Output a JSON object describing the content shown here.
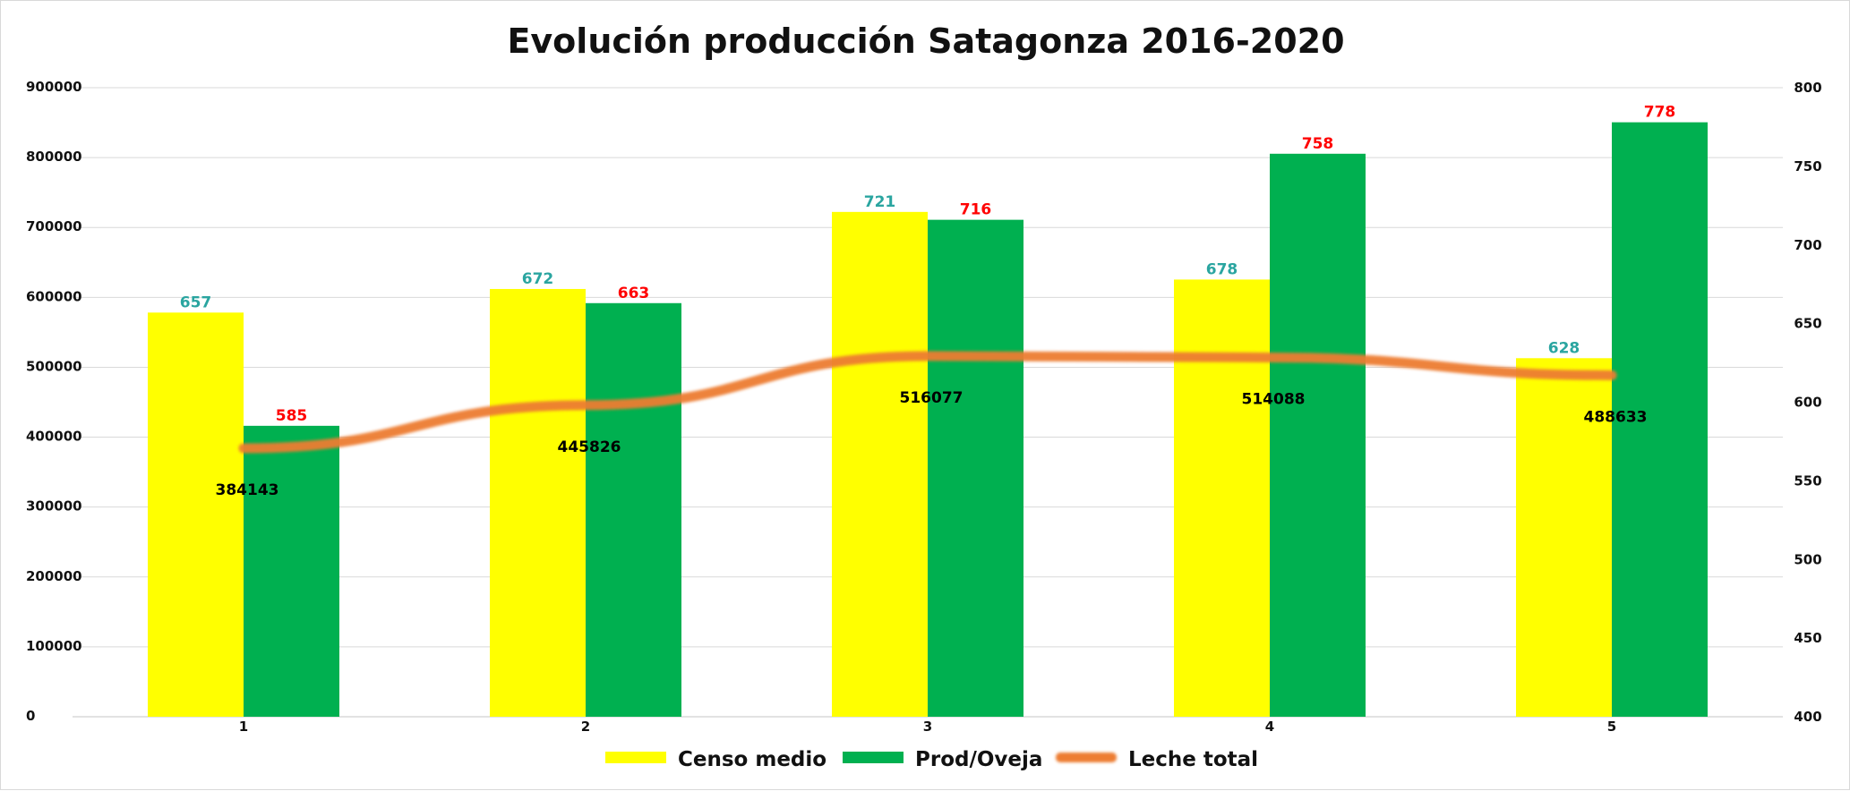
{
  "chart_data": {
    "type": "bar",
    "title": "Evolución producción Satagonza 2016-2020",
    "categories": [
      "1",
      "2",
      "3",
      "4",
      "5"
    ],
    "y_left": {
      "ylim": [
        0,
        900000
      ],
      "ticks": [
        "0",
        "100000",
        "200000",
        "300000",
        "400000",
        "500000",
        "600000",
        "700000",
        "800000",
        "900000"
      ]
    },
    "y_right": {
      "ylim": [
        400,
        800
      ],
      "ticks": [
        "400",
        "450",
        "500",
        "550",
        "600",
        "650",
        "700",
        "750",
        "800"
      ]
    },
    "series": [
      {
        "name": "Censo medio",
        "kind": "bar",
        "axis": "right",
        "color": "#FFFF00",
        "label_color": "#2AA5A0",
        "values": [
          657,
          672,
          721,
          678,
          628
        ],
        "labels": [
          "657",
          "672",
          "721",
          "678",
          "628"
        ]
      },
      {
        "name": "Prod/Oveja",
        "kind": "bar",
        "axis": "right",
        "color": "#00B050",
        "label_color": "#FF0000",
        "values": [
          585,
          663,
          716,
          758,
          778
        ],
        "labels": [
          "585",
          "663",
          "716",
          "758",
          "778"
        ]
      },
      {
        "name": "Leche total",
        "kind": "line",
        "axis": "left",
        "color": "#ED7D31",
        "label_color": "#000000",
        "values": [
          384143,
          445826,
          516077,
          514088,
          488633
        ],
        "labels": [
          "384143",
          "445826",
          "516077",
          "514088",
          "488633"
        ]
      }
    ],
    "grid": true,
    "legend": "bottom"
  }
}
